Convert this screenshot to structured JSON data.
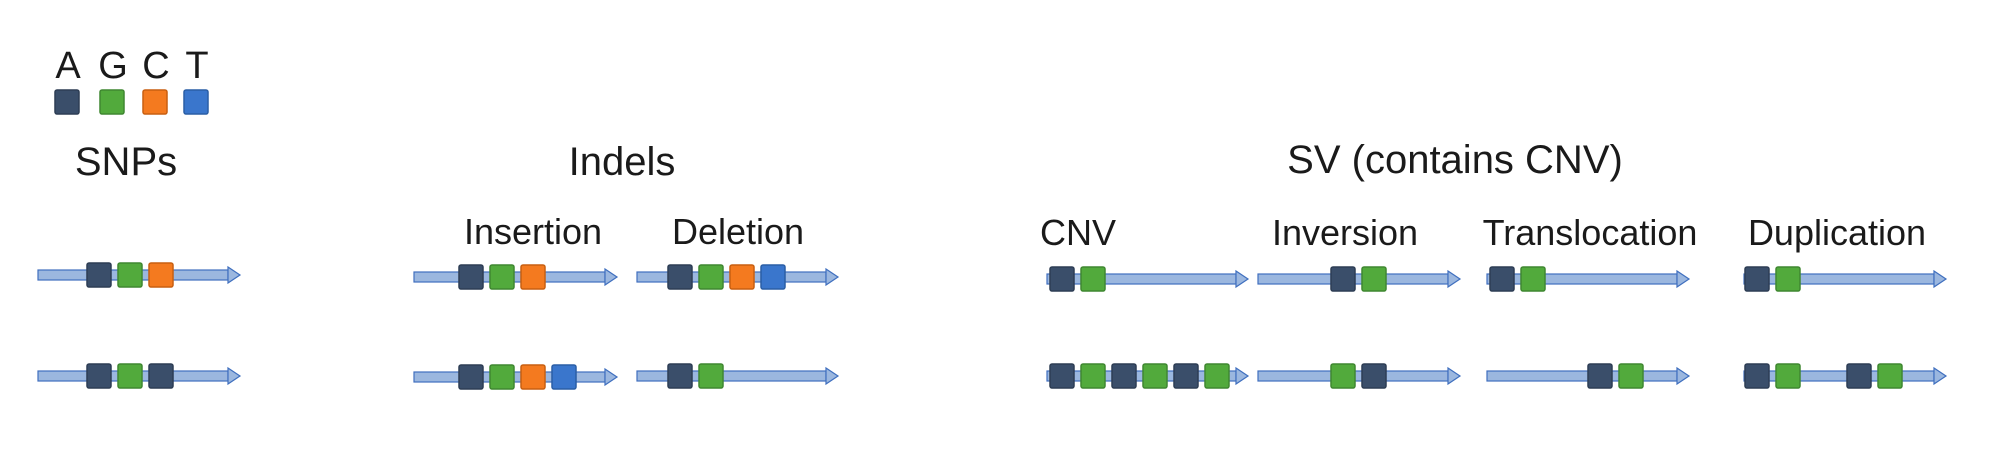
{
  "legend": {
    "bases": [
      {
        "letter": "A",
        "color": "#3a4e6a"
      },
      {
        "letter": "G",
        "color": "#52aa3c"
      },
      {
        "letter": "C",
        "color": "#f47a1f"
      },
      {
        "letter": "T",
        "color": "#3a76cc"
      }
    ]
  },
  "colors": {
    "line": "#9bb7df",
    "arrow_outline": "#3f6fbf",
    "square_border_dark": "#2d3d54",
    "square_border_green": "#3f8730",
    "square_border_orange": "#c85f10",
    "square_border_blue": "#2a5ea5"
  },
  "sections": {
    "snps": {
      "title": "SNPs",
      "rows": [
        [
          "A",
          "G",
          "C"
        ],
        [
          "A",
          "G",
          "A"
        ]
      ]
    },
    "indels": {
      "title": "Indels",
      "insertion": {
        "label": "Insertion",
        "rows": [
          [
            "A",
            "G",
            "C"
          ],
          [
            "A",
            "G",
            "C",
            "T"
          ]
        ]
      },
      "deletion": {
        "label": "Deletion",
        "rows": [
          [
            "A",
            "G",
            "C",
            "T"
          ],
          [
            "A",
            "G"
          ]
        ]
      }
    },
    "sv": {
      "title": "SV (contains CNV)",
      "cnv": {
        "label": "CNV",
        "rows": [
          [
            "A",
            "G"
          ],
          [
            "A",
            "G",
            "A",
            "G",
            "A",
            "G"
          ]
        ]
      },
      "inversion": {
        "label": "Inversion",
        "rows": [
          [
            "A",
            "G"
          ],
          [
            "G",
            "A"
          ]
        ]
      },
      "translocation": {
        "label": "Translocation",
        "rows": [
          [
            "A",
            "G"
          ],
          [
            "A",
            "G"
          ]
        ]
      },
      "duplication": {
        "label": "Duplication",
        "rows": [
          [
            "A",
            "G"
          ],
          [
            "A",
            "G",
            "A",
            "G"
          ]
        ]
      }
    }
  }
}
